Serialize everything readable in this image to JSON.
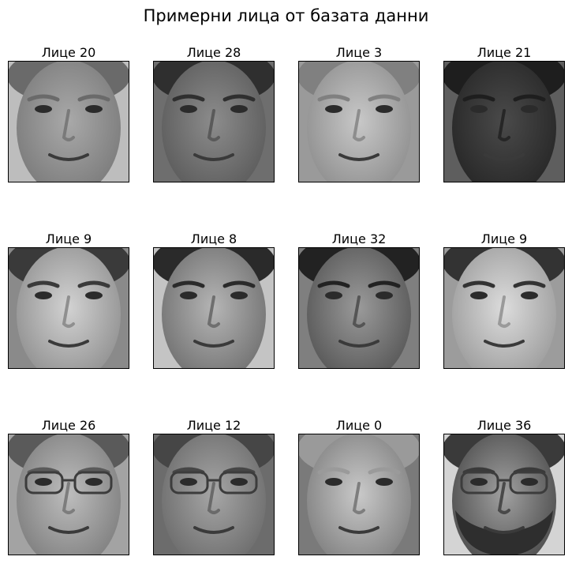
{
  "figure": {
    "title": "Примерни лица от базата данни"
  },
  "faces": [
    {
      "label": "Лице 20",
      "tone": "#a9a9a9",
      "bg": "#bdbdbd",
      "hair": "#6a6a6a",
      "shadow": "#7a7a7a",
      "glasses": false,
      "beard": false
    },
    {
      "label": "Лице 28",
      "tone": "#8c8c8c",
      "bg": "#6e6e6e",
      "hair": "#2f2f2f",
      "shadow": "#5a5a5a",
      "glasses": false,
      "beard": false
    },
    {
      "label": "Лице 3",
      "tone": "#c8c8c8",
      "bg": "#9a9a9a",
      "hair": "#808080",
      "shadow": "#8d8d8d",
      "glasses": false,
      "beard": false
    },
    {
      "label": "Лице 21",
      "tone": "#4a4a4a",
      "bg": "#5e5e5e",
      "hair": "#1e1e1e",
      "shadow": "#262626",
      "glasses": false,
      "beard": false
    },
    {
      "label": "Лице 9",
      "tone": "#d2d2d2",
      "bg": "#8a8a8a",
      "hair": "#3a3a3a",
      "shadow": "#8f8f8f",
      "glasses": false,
      "beard": false
    },
    {
      "label": "Лице 8",
      "tone": "#b5b5b5",
      "bg": "#c4c4c4",
      "hair": "#2a2a2a",
      "shadow": "#6f6f6f",
      "glasses": false,
      "beard": false
    },
    {
      "label": "Лице 32",
      "tone": "#9a9a9a",
      "bg": "#7f7f7f",
      "hair": "#222222",
      "shadow": "#555555",
      "glasses": false,
      "beard": false
    },
    {
      "label": "Лице 9",
      "tone": "#dcdcdc",
      "bg": "#9c9c9c",
      "hair": "#333333",
      "shadow": "#9a9a9a",
      "glasses": false,
      "beard": false
    },
    {
      "label": "Лице 26",
      "tone": "#bdbdbd",
      "bg": "#a3a3a3",
      "hair": "#5a5a5a",
      "shadow": "#7d7d7d",
      "glasses": true,
      "beard": false
    },
    {
      "label": "Лице 12",
      "tone": "#a6a6a6",
      "bg": "#6c6c6c",
      "hair": "#464646",
      "shadow": "#6a6a6a",
      "glasses": true,
      "beard": false
    },
    {
      "label": "Лице 0",
      "tone": "#c9c9c9",
      "bg": "#7a7a7a",
      "hair": "#9a9a9a",
      "shadow": "#7e7e7e",
      "glasses": false,
      "beard": false
    },
    {
      "label": "Лице 36",
      "tone": "#a0a0a0",
      "bg": "#d4d4d4",
      "hair": "#3a3a3a",
      "shadow": "#4a4a4a",
      "glasses": true,
      "beard": true
    }
  ]
}
